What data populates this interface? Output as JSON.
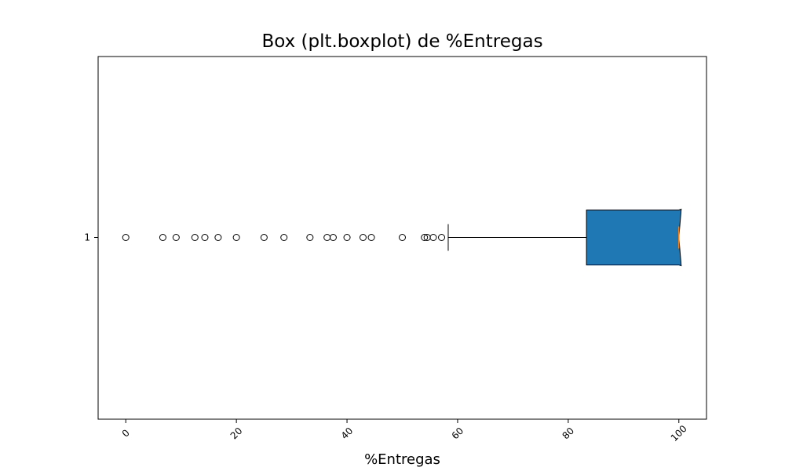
{
  "chart_data": {
    "type": "box",
    "orientation": "horizontal",
    "title": "Box (plt.boxplot) de %Entregas",
    "xlabel": "%Entregas",
    "ylabel": "",
    "xlim": [
      -5,
      105
    ],
    "xticks": [
      0,
      20,
      40,
      60,
      80,
      100
    ],
    "xtick_labels": [
      "0",
      "20",
      "40",
      "60",
      "80",
      "100"
    ],
    "xtick_rotation": 45,
    "categories": [
      "1"
    ],
    "box": {
      "whisker_low": 58.3,
      "q1": 83.3,
      "median": 100,
      "q3": 100,
      "whisker_high": 100,
      "notched": true,
      "fill": "#1f77b4",
      "median_color": "#ff7f0e"
    },
    "outliers": [
      0,
      6.7,
      9.1,
      12.5,
      14.3,
      16.7,
      20,
      25,
      28.6,
      33.3,
      36.4,
      37.5,
      40,
      42.9,
      44.4,
      50,
      54,
      54.5,
      55.6,
      57.1
    ],
    "grid": false
  }
}
